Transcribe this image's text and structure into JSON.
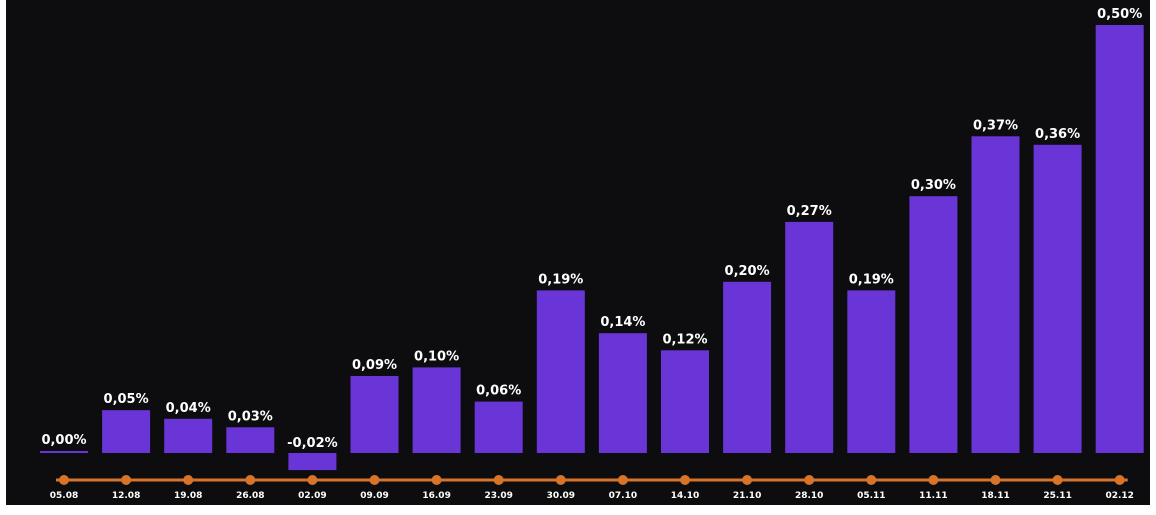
{
  "chart_data": {
    "type": "bar",
    "categories": [
      "05.08",
      "12.08",
      "19.08",
      "26.08",
      "02.09",
      "09.09",
      "16.09",
      "23.09",
      "30.09",
      "07.10",
      "14.10",
      "21.10",
      "28.10",
      "05.11",
      "11.11",
      "18.11",
      "25.11",
      "02.12"
    ],
    "values": [
      0.0,
      0.05,
      0.04,
      0.03,
      -0.02,
      0.09,
      0.1,
      0.06,
      0.19,
      0.14,
      0.12,
      0.2,
      0.27,
      0.19,
      0.3,
      0.37,
      0.36,
      0.5
    ],
    "value_labels": [
      "0,00%",
      "0,05%",
      "0,04%",
      "0,03%",
      "-0,02%",
      "0,09%",
      "0,10%",
      "0,06%",
      "0,19%",
      "0,14%",
      "0,12%",
      "0,20%",
      "0,27%",
      "0,19%",
      "0,30%",
      "0,37%",
      "0,36%",
      "0,50%"
    ],
    "ylim": [
      -0.02,
      0.5
    ],
    "grid": false,
    "legend": "none",
    "colors": {
      "background": "#0d0d0f",
      "bar": "#6a35d6",
      "timeline": "#d8742a",
      "text": "#ffffff"
    }
  }
}
